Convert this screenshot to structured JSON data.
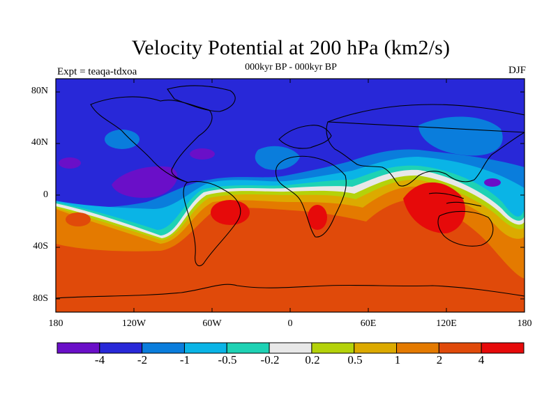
{
  "figure": {
    "title": "Velocity Potential at 200 hPa (km2/s)",
    "subtitle": "000kyr BP - 000kyr BP",
    "left_label": "Expt = teaqa-tdxoa",
    "right_label": "DJF"
  },
  "axes": {
    "lat_ticks": [
      "80N",
      "40N",
      "0",
      "40S",
      "80S"
    ],
    "lon_ticks": [
      "180",
      "120W",
      "60W",
      "0",
      "60E",
      "120E",
      "180"
    ]
  },
  "colorbar": {
    "labels": [
      "-4",
      "-2",
      "-1",
      "-0.5",
      "-0.2",
      "0.2",
      "0.5",
      "1",
      "2",
      "4"
    ],
    "colors": [
      "#6a0fc8",
      "#2828d8",
      "#0a7ddc",
      "#0ab4e6",
      "#1ed2b4",
      "#e8e8e8",
      "#b4d20a",
      "#dcaa00",
      "#e47a00",
      "#e04a0a",
      "#e60a0a"
    ]
  }
}
